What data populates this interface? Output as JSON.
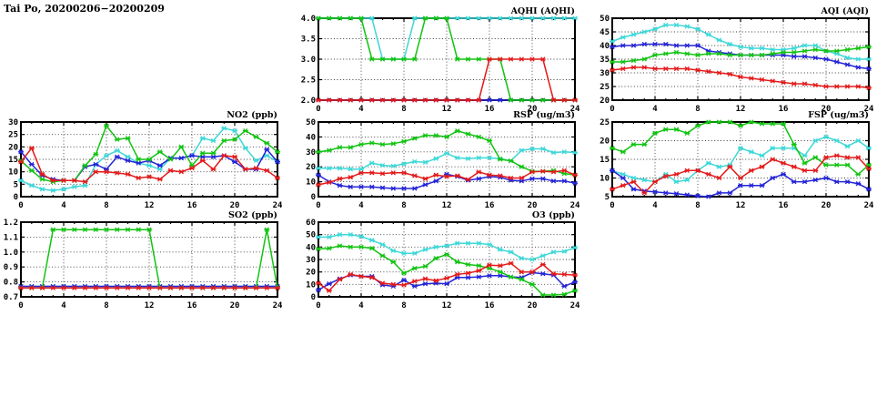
{
  "page_title": "Tai Po, 20200206−20200209",
  "colors": {
    "red": "#e41a1a",
    "green": "#12c412",
    "blue": "#2424d8",
    "cyan": "#3ed8d8",
    "grid": "#3a3a3a",
    "border": "#000000",
    "background": "#ffffff"
  },
  "x_axis": {
    "min": 0,
    "max": 24,
    "major_ticks": [
      0,
      4,
      8,
      12,
      16,
      20,
      24
    ],
    "points": "hourly, 25 points per series (hours 0-24)"
  },
  "chart_data": [
    {
      "type": "line",
      "title": "AQHI (AQHI)",
      "ymin": 2.0,
      "ymax": 4.0,
      "yticks": [
        "2.0",
        "2.5",
        "3.0",
        "3.5",
        "4.0"
      ],
      "series": [
        {
          "name": "cyan",
          "color": "cyan",
          "values": [
            4,
            4,
            4,
            4,
            4,
            4,
            3,
            3,
            3,
            4,
            4,
            4,
            4,
            4,
            4,
            4,
            4,
            4,
            4,
            4,
            4,
            4,
            4,
            4,
            4
          ]
        },
        {
          "name": "blue",
          "color": "blue",
          "values": [
            2,
            2,
            2,
            2,
            2,
            2,
            2,
            2,
            2,
            2,
            2,
            2,
            2,
            2,
            2,
            2,
            2,
            2,
            2,
            2,
            2,
            2,
            2,
            2,
            2
          ]
        },
        {
          "name": "green",
          "color": "green",
          "values": [
            4,
            4,
            4,
            4,
            4,
            3,
            3,
            3,
            3,
            3,
            4,
            4,
            4,
            3,
            3,
            3,
            3,
            3,
            2,
            2,
            2,
            2,
            2,
            2,
            2
          ]
        },
        {
          "name": "red",
          "color": "red",
          "values": [
            2,
            2,
            2,
            2,
            2,
            2,
            2,
            2,
            2,
            2,
            2,
            2,
            2,
            2,
            2,
            2,
            3,
            3,
            3,
            3,
            3,
            3,
            2,
            2,
            2
          ]
        }
      ]
    },
    {
      "type": "line",
      "title": "AQI (AQI)",
      "ymin": 20,
      "ymax": 50,
      "yticks": [
        "20",
        "25",
        "30",
        "35",
        "40",
        "45",
        "50"
      ],
      "series": [
        {
          "name": "cyan",
          "color": "cyan",
          "values": [
            41.5,
            43,
            44,
            45,
            46,
            47.5,
            47.5,
            47,
            46,
            44,
            42,
            40.5,
            39.5,
            39,
            39,
            38.5,
            38.5,
            39,
            40,
            40,
            38,
            37,
            35.5,
            35,
            35
          ]
        },
        {
          "name": "blue",
          "color": "blue",
          "values": [
            39.5,
            40,
            40,
            40.5,
            40.5,
            40.5,
            40,
            40,
            40,
            38,
            37.5,
            37,
            36.5,
            36.5,
            36.5,
            36.5,
            36.5,
            36,
            36,
            35.5,
            35,
            34,
            33,
            32,
            31.5
          ]
        },
        {
          "name": "green",
          "color": "green",
          "values": [
            34,
            34,
            34.5,
            35,
            36.5,
            37,
            37.5,
            37,
            36.5,
            37,
            37,
            36.5,
            36.5,
            36.5,
            36.5,
            37,
            37.5,
            37.5,
            38,
            38.5,
            38,
            38,
            38.5,
            39,
            39.5
          ]
        },
        {
          "name": "red",
          "color": "red",
          "values": [
            31,
            31.5,
            32,
            32,
            31.5,
            31.5,
            31.5,
            31.5,
            31,
            30.5,
            30,
            29.5,
            28.5,
            28,
            27.5,
            27,
            26.5,
            26,
            26,
            25.5,
            25,
            25,
            25,
            25,
            24.5
          ]
        }
      ]
    },
    {
      "type": "line",
      "title": "NO2 (ppb)",
      "ymin": 0,
      "ymax": 30,
      "yticks": [
        "0",
        "5",
        "10",
        "15",
        "20",
        "25",
        "30"
      ],
      "series": [
        {
          "name": "cyan",
          "color": "cyan",
          "values": [
            6.5,
            4.5,
            3,
            2.5,
            3,
            4,
            4.5,
            13,
            16.5,
            18.5,
            16,
            13.5,
            12.5,
            11,
            15.5,
            15.5,
            16.5,
            23.5,
            22.5,
            27.5,
            26.5,
            19.5,
            14.5,
            16.5,
            14
          ]
        },
        {
          "name": "blue",
          "color": "blue",
          "values": [
            18,
            13,
            8.5,
            7,
            6.5,
            6.5,
            12,
            13,
            11,
            16,
            14.5,
            13.5,
            14.5,
            12.5,
            15.5,
            15.5,
            16.5,
            16,
            16,
            16.5,
            14,
            11,
            11,
            19,
            14
          ]
        },
        {
          "name": "green",
          "color": "green",
          "values": [
            14.5,
            10.5,
            7,
            6,
            6.5,
            6.5,
            12.5,
            17,
            28.5,
            23,
            23.5,
            15,
            15,
            18,
            15,
            20,
            12.5,
            17.5,
            17.5,
            22.5,
            23,
            26.5,
            24,
            21.5,
            18
          ]
        },
        {
          "name": "red",
          "color": "red",
          "values": [
            14,
            19.5,
            9,
            6.5,
            6.5,
            6.5,
            6,
            10,
            10,
            9.5,
            9,
            7.5,
            8,
            7,
            10.5,
            10,
            11.5,
            14.5,
            11,
            16.5,
            16,
            11,
            11.5,
            10.5,
            7.5
          ]
        }
      ]
    },
    {
      "type": "line",
      "title": "RSP (ug/m3)",
      "ymin": 0,
      "ymax": 50,
      "yticks": [
        "0",
        "10",
        "20",
        "30",
        "40",
        "50"
      ],
      "series": [
        {
          "name": "cyan",
          "color": "cyan",
          "values": [
            19,
            19,
            19,
            18.5,
            18.5,
            22.5,
            21,
            20.5,
            22,
            23.5,
            23,
            25.5,
            29,
            26,
            25.5,
            26,
            26,
            25.5,
            24,
            31,
            32,
            32,
            29.5,
            30,
            29.5
          ]
        },
        {
          "name": "blue",
          "color": "blue",
          "values": [
            14.5,
            10,
            7.5,
            6.5,
            6.5,
            6.5,
            6,
            5.5,
            5.5,
            5.5,
            8,
            10.5,
            15,
            13.5,
            11,
            12,
            13.5,
            13,
            11,
            10.5,
            12,
            12,
            10.5,
            10.5,
            9
          ]
        },
        {
          "name": "green",
          "color": "green",
          "values": [
            30,
            31,
            33,
            33,
            35,
            36,
            35,
            35.5,
            37,
            39,
            41,
            41,
            40,
            44,
            42,
            40,
            37.5,
            25,
            24,
            20,
            17,
            17,
            17.5,
            15.5,
            14.5
          ]
        },
        {
          "name": "red",
          "color": "red",
          "values": [
            8,
            9.5,
            12,
            13,
            16,
            16,
            15.5,
            16,
            16,
            14,
            12,
            14.5,
            13.5,
            14,
            11.5,
            16.5,
            14.5,
            14,
            12.5,
            12.5,
            16.5,
            17,
            16.5,
            17.5,
            14.5
          ]
        }
      ]
    },
    {
      "type": "line",
      "title": "FSP (ug/m3)",
      "ymin": 5,
      "ymax": 25,
      "yticks": [
        "5",
        "10",
        "15",
        "20",
        "25"
      ],
      "series": [
        {
          "name": "cyan",
          "color": "cyan",
          "values": [
            12,
            11,
            10,
            9.5,
            9,
            11,
            9,
            9.5,
            12,
            14,
            13,
            13.5,
            18,
            17,
            16,
            18,
            18,
            18,
            16,
            20,
            21,
            20,
            18.5,
            20,
            18
          ]
        },
        {
          "name": "blue",
          "color": "blue",
          "values": [
            12,
            10,
            7,
            6.5,
            6.3,
            6,
            5.8,
            5.5,
            5.2,
            5,
            6,
            6,
            8,
            8,
            8,
            10,
            11,
            9,
            9,
            9.5,
            10,
            9,
            9,
            8.5,
            7
          ]
        },
        {
          "name": "green",
          "color": "green",
          "values": [
            18,
            17,
            19,
            19,
            22,
            23,
            23,
            22,
            24,
            25,
            25,
            25,
            24,
            25,
            24.5,
            24.5,
            24.5,
            19,
            14,
            15.5,
            13.5,
            13.5,
            13.5,
            11,
            13.5
          ]
        },
        {
          "name": "red",
          "color": "red",
          "values": [
            7,
            8,
            9,
            6,
            9,
            10.5,
            11,
            12,
            12,
            11,
            10,
            13,
            10,
            12,
            13,
            15,
            14,
            13,
            12,
            12,
            15.5,
            16,
            15.5,
            15.5,
            12.5
          ]
        }
      ]
    },
    {
      "type": "line",
      "title": "SO2 (ppb)",
      "ymin": 0.7,
      "ymax": 1.2,
      "yticks": [
        "0.7",
        "0.8",
        "0.9",
        "1.0",
        "1.1",
        "1.2"
      ],
      "series": [
        {
          "name": "cyan",
          "color": "cyan",
          "values": [
            0.77,
            0.77,
            0.77,
            0.77,
            0.77,
            0.77,
            0.77,
            0.77,
            0.77,
            0.77,
            0.77,
            0.77,
            0.77,
            0.77,
            0.77,
            0.77,
            0.77,
            0.77,
            0.77,
            0.77,
            0.77,
            0.77,
            0.77,
            0.77,
            0.77
          ]
        },
        {
          "name": "blue",
          "color": "blue",
          "values": [
            0.77,
            0.77,
            0.77,
            0.77,
            0.77,
            0.77,
            0.77,
            0.77,
            0.77,
            0.77,
            0.77,
            0.77,
            0.77,
            0.77,
            0.77,
            0.77,
            0.77,
            0.77,
            0.77,
            0.77,
            0.77,
            0.77,
            0.77,
            0.77,
            0.77
          ]
        },
        {
          "name": "green",
          "color": "green",
          "values": [
            0.76,
            0.76,
            0.76,
            1.15,
            1.15,
            1.15,
            1.15,
            1.15,
            1.15,
            1.15,
            1.15,
            1.15,
            1.15,
            0.76,
            0.76,
            0.76,
            0.76,
            0.76,
            0.76,
            0.76,
            0.76,
            0.76,
            0.76,
            1.15,
            0.76
          ]
        },
        {
          "name": "red",
          "color": "red",
          "values": [
            0.76,
            0.76,
            0.76,
            0.76,
            0.76,
            0.76,
            0.76,
            0.76,
            0.76,
            0.76,
            0.76,
            0.76,
            0.76,
            0.76,
            0.76,
            0.76,
            0.76,
            0.76,
            0.76,
            0.76,
            0.76,
            0.76,
            0.76,
            0.76,
            0.76
          ]
        }
      ]
    },
    {
      "type": "line",
      "title": "O3 (ppb)",
      "ymin": 0,
      "ymax": 60,
      "yticks": [
        "0",
        "10",
        "20",
        "30",
        "40",
        "50",
        "60"
      ],
      "series": [
        {
          "name": "cyan",
          "color": "cyan",
          "values": [
            48,
            48,
            50,
            50,
            48.5,
            45.5,
            42,
            37,
            35,
            35,
            38,
            40,
            41,
            43,
            43,
            43,
            42,
            38,
            36,
            31,
            30,
            33,
            36,
            36.5,
            39.5
          ]
        },
        {
          "name": "blue",
          "color": "blue",
          "values": [
            5.5,
            10.5,
            14.5,
            17.5,
            16.5,
            16.5,
            9.5,
            8.5,
            13.5,
            8.5,
            10.5,
            11,
            10.5,
            15.5,
            15.5,
            16,
            17,
            17,
            16,
            15.5,
            19.5,
            18.5,
            17.5,
            8.5,
            12
          ]
        },
        {
          "name": "green",
          "color": "green",
          "values": [
            38.5,
            39,
            41,
            40,
            40,
            39,
            33,
            28,
            19,
            23,
            24.5,
            31,
            34,
            28,
            26,
            25,
            23,
            20,
            16,
            14,
            10,
            1.5,
            1.5,
            2,
            5
          ]
        },
        {
          "name": "red",
          "color": "red",
          "values": [
            11,
            5,
            14,
            18,
            16.5,
            15.5,
            11,
            10,
            9.5,
            12.5,
            14.5,
            13,
            15,
            18,
            19,
            21,
            25.5,
            25,
            27,
            20,
            20,
            26,
            18.5,
            18,
            17.5
          ]
        }
      ]
    }
  ]
}
